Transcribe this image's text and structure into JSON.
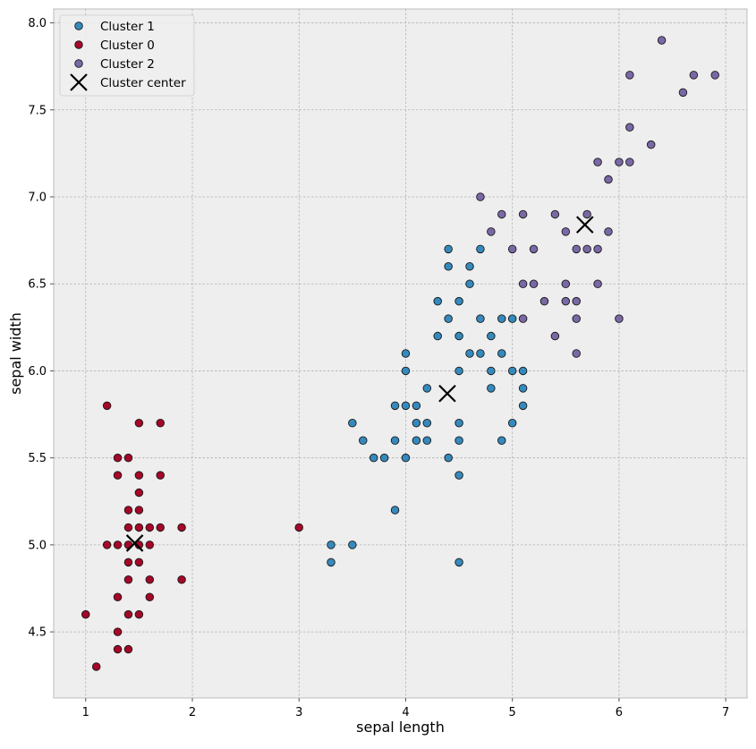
{
  "chart_data": {
    "type": "scatter",
    "xlabel": "sepal length",
    "ylabel": "sepal width",
    "xlim": [
      0.7,
      7.2
    ],
    "ylim": [
      4.12,
      8.08
    ],
    "x_ticks": [
      1,
      2,
      3,
      4,
      5,
      6,
      7
    ],
    "y_ticks": [
      4.5,
      5.0,
      5.5,
      6.0,
      6.5,
      7.0,
      7.5,
      8.0
    ],
    "x_tick_labels": [
      "1",
      "2",
      "3",
      "4",
      "5",
      "6",
      "7"
    ],
    "y_tick_labels": [
      "4.5",
      "5.0",
      "5.5",
      "6.0",
      "6.5",
      "7.0",
      "7.5",
      "8.0"
    ],
    "grid": true,
    "legend_position": "top-left",
    "series": [
      {
        "name": "Cluster 1",
        "color": "#348ABD",
        "marker": "circle",
        "points": [
          [
            3.3,
            5.0
          ],
          [
            3.5,
            5.0
          ],
          [
            3.3,
            4.9
          ],
          [
            3.9,
            5.2
          ],
          [
            3.5,
            5.7
          ],
          [
            3.6,
            5.6
          ],
          [
            3.7,
            5.5
          ],
          [
            3.8,
            5.5
          ],
          [
            3.9,
            5.8
          ],
          [
            3.9,
            5.6
          ],
          [
            4.0,
            5.5
          ],
          [
            4.0,
            5.8
          ],
          [
            4.0,
            6.0
          ],
          [
            4.0,
            6.1
          ],
          [
            4.1,
            5.8
          ],
          [
            4.1,
            5.7
          ],
          [
            4.1,
            5.6
          ],
          [
            4.2,
            5.9
          ],
          [
            4.2,
            5.7
          ],
          [
            4.2,
            5.6
          ],
          [
            4.3,
            6.4
          ],
          [
            4.3,
            6.2
          ],
          [
            4.4,
            6.7
          ],
          [
            4.4,
            6.6
          ],
          [
            4.4,
            6.3
          ],
          [
            4.4,
            5.5
          ],
          [
            4.5,
            6.4
          ],
          [
            4.5,
            6.2
          ],
          [
            4.5,
            6.0
          ],
          [
            4.5,
            5.7
          ],
          [
            4.5,
            5.6
          ],
          [
            4.5,
            5.4
          ],
          [
            4.5,
            4.9
          ],
          [
            4.6,
            6.6
          ],
          [
            4.6,
            6.5
          ],
          [
            4.6,
            6.1
          ],
          [
            4.7,
            6.7
          ],
          [
            4.7,
            6.3
          ],
          [
            4.7,
            6.1
          ],
          [
            4.8,
            6.2
          ],
          [
            4.8,
            6.0
          ],
          [
            4.8,
            5.9
          ],
          [
            4.9,
            6.3
          ],
          [
            4.9,
            6.1
          ],
          [
            4.9,
            5.6
          ],
          [
            5.0,
            6.3
          ],
          [
            5.0,
            6.0
          ],
          [
            5.0,
            5.7
          ],
          [
            5.1,
            6.0
          ],
          [
            5.1,
            5.9
          ],
          [
            5.1,
            5.8
          ]
        ]
      },
      {
        "name": "Cluster 0",
        "color": "#A60628",
        "marker": "circle",
        "points": [
          [
            1.0,
            4.6
          ],
          [
            1.1,
            4.3
          ],
          [
            1.2,
            5.8
          ],
          [
            1.2,
            5.0
          ],
          [
            1.3,
            5.5
          ],
          [
            1.3,
            5.4
          ],
          [
            1.3,
            5.0
          ],
          [
            1.3,
            4.7
          ],
          [
            1.3,
            4.5
          ],
          [
            1.3,
            4.4
          ],
          [
            1.4,
            5.5
          ],
          [
            1.4,
            5.2
          ],
          [
            1.4,
            5.1
          ],
          [
            1.4,
            5.0
          ],
          [
            1.4,
            4.9
          ],
          [
            1.4,
            4.8
          ],
          [
            1.4,
            4.6
          ],
          [
            1.4,
            4.4
          ],
          [
            1.5,
            5.7
          ],
          [
            1.5,
            5.4
          ],
          [
            1.5,
            5.3
          ],
          [
            1.5,
            5.2
          ],
          [
            1.5,
            5.1
          ],
          [
            1.5,
            5.0
          ],
          [
            1.5,
            4.9
          ],
          [
            1.5,
            4.6
          ],
          [
            1.6,
            5.1
          ],
          [
            1.6,
            5.0
          ],
          [
            1.6,
            4.8
          ],
          [
            1.6,
            4.7
          ],
          [
            1.7,
            5.7
          ],
          [
            1.7,
            5.4
          ],
          [
            1.7,
            5.1
          ],
          [
            1.9,
            5.1
          ],
          [
            1.9,
            4.8
          ],
          [
            3.0,
            5.1
          ]
        ]
      },
      {
        "name": "Cluster 2",
        "color": "#7A68A6",
        "marker": "circle",
        "points": [
          [
            4.7,
            7.0
          ],
          [
            4.8,
            6.8
          ],
          [
            4.9,
            6.9
          ],
          [
            5.0,
            6.7
          ],
          [
            5.1,
            6.9
          ],
          [
            5.1,
            6.5
          ],
          [
            5.1,
            6.3
          ],
          [
            5.2,
            6.7
          ],
          [
            5.2,
            6.5
          ],
          [
            5.3,
            6.4
          ],
          [
            5.4,
            6.9
          ],
          [
            5.4,
            6.2
          ],
          [
            5.5,
            6.8
          ],
          [
            5.5,
            6.5
          ],
          [
            5.5,
            6.4
          ],
          [
            5.6,
            6.7
          ],
          [
            5.6,
            6.4
          ],
          [
            5.6,
            6.3
          ],
          [
            5.6,
            6.1
          ],
          [
            5.7,
            6.9
          ],
          [
            5.7,
            6.7
          ],
          [
            5.8,
            7.2
          ],
          [
            5.8,
            6.7
          ],
          [
            5.8,
            6.5
          ],
          [
            5.9,
            7.1
          ],
          [
            5.9,
            6.8
          ],
          [
            6.0,
            7.2
          ],
          [
            6.0,
            6.3
          ],
          [
            6.1,
            7.7
          ],
          [
            6.1,
            7.4
          ],
          [
            6.1,
            7.2
          ],
          [
            6.3,
            7.3
          ],
          [
            6.4,
            7.9
          ],
          [
            6.6,
            7.6
          ],
          [
            6.7,
            7.7
          ],
          [
            6.9,
            7.7
          ]
        ]
      }
    ],
    "centers": {
      "name": "Cluster center",
      "color": "#000000",
      "marker": "x",
      "points": [
        [
          1.46,
          5.01
        ],
        [
          4.39,
          5.87
        ],
        [
          5.68,
          6.84
        ]
      ]
    }
  }
}
